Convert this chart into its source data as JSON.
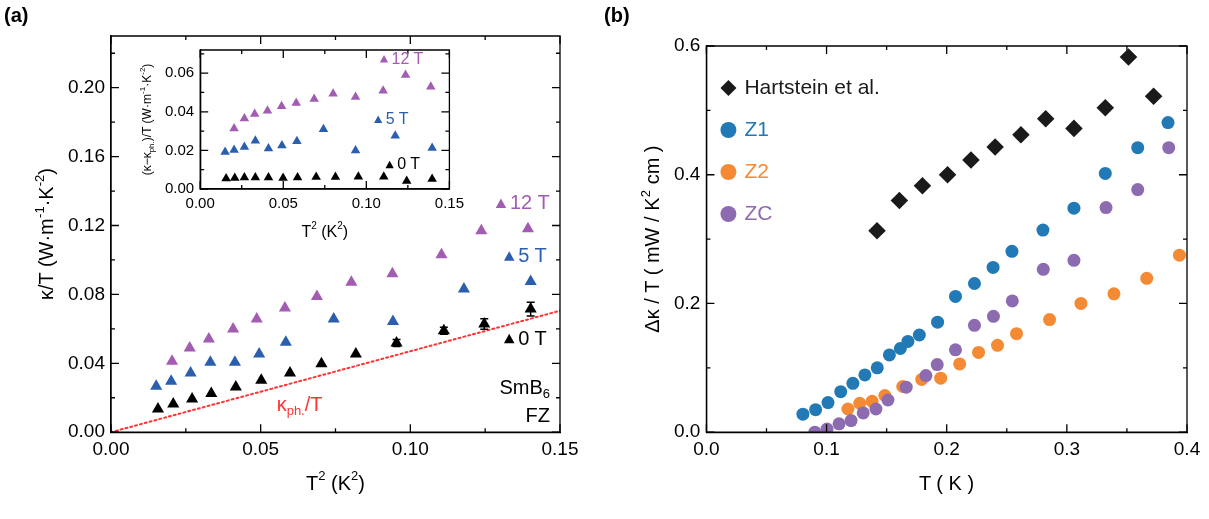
{
  "chart_data": [
    {
      "type": "scatter",
      "title": "(a)",
      "xlabel": "T$^{2}$ (K$^{2}$)",
      "ylabel": "κ/T (W·m$^{-1}$·K$^{-2}$)",
      "marker": "triangle",
      "grid": false,
      "legend": "right",
      "xlim": [
        0,
        0.15
      ],
      "ylim": [
        0,
        0.23
      ],
      "xticks": [
        {
          "value": 0,
          "label": "0.00"
        },
        {
          "value": 0.025,
          "label": null
        },
        {
          "value": 0.05,
          "label": "0.05"
        },
        {
          "value": 0.075,
          "label": null
        },
        {
          "value": 0.1,
          "label": "0.10"
        },
        {
          "value": 0.125,
          "label": null
        },
        {
          "value": 0.15,
          "label": "0.15"
        }
      ],
      "yticks": [
        {
          "value": 0,
          "label": "0.00"
        },
        {
          "value": 0.02,
          "label": null
        },
        {
          "value": 0.04,
          "label": "0.04"
        },
        {
          "value": 0.06,
          "label": null
        },
        {
          "value": 0.08,
          "label": "0.08"
        },
        {
          "value": 0.1,
          "label": null
        },
        {
          "value": 0.12,
          "label": "0.12"
        },
        {
          "value": 0.14,
          "label": null
        },
        {
          "value": 0.16,
          "label": "0.16"
        },
        {
          "value": 0.18,
          "label": null
        },
        {
          "value": 0.2,
          "label": "0.20"
        },
        {
          "value": 0.22,
          "label": null
        }
      ],
      "annotations": [
        "SmB$_{6}$",
        "FZ"
      ],
      "series": [
        {
          "name": "12 T",
          "color": "#a25db3",
          "x": [
            0.0204,
            0.0263,
            0.0327,
            0.0408,
            0.0487,
            0.0581,
            0.0688,
            0.0803,
            0.094,
            0.1104,
            0.1237,
            0.1393
          ],
          "values": [
            0.0412,
            0.0489,
            0.0541,
            0.0599,
            0.0657,
            0.0721,
            0.0788,
            0.0871,
            0.092,
            0.103,
            0.1169,
            0.1181
          ]
        },
        {
          "name": "5 T",
          "color": "#2b5fae",
          "x": [
            0.0151,
            0.0201,
            0.0266,
            0.0332,
            0.0414,
            0.0495,
            0.0584,
            0.0744,
            0.0942,
            0.1179,
            0.1402
          ],
          "values": [
            0.0267,
            0.0296,
            0.0344,
            0.0406,
            0.0406,
            0.0454,
            0.0522,
            0.0657,
            0.0643,
            0.0831,
            0.0875
          ]
        },
        {
          "name": "0 T",
          "color": "#000000",
          "x": [
            0.0157,
            0.0208,
            0.0271,
            0.0335,
            0.0417,
            0.0502,
            0.0598,
            0.0703,
            0.0818,
            0.0954,
            0.1112,
            0.1247,
            0.1402
          ],
          "values": [
            0.0135,
            0.0164,
            0.0193,
            0.0224,
            0.0263,
            0.0301,
            0.0344,
            0.0398,
            0.0454,
            0.0518,
            0.0589,
            0.0628,
            0.0715
          ],
          "errors": [
            null,
            null,
            null,
            null,
            null,
            null,
            null,
            null,
            null,
            0.002,
            0.002,
            0.003,
            0.004
          ]
        },
        {
          "name": "κ$_{ph.}$/T",
          "type": "line",
          "color": "#ff3333",
          "marker": "none",
          "line_style": "dotted",
          "x": [
            0,
            0.15
          ],
          "values": [
            0,
            0.0705
          ]
        }
      ]
    },
    {
      "type": "scatter",
      "xlabel": "T$^{2}$ (K$^{2}$)",
      "ylabel": "(κ−κ$_{ph.}$)/T (W·m$^{-1}$·K$^{-2}$)",
      "marker": "triangle",
      "grid": false,
      "legend": "top right",
      "xlim": [
        0,
        0.15
      ],
      "ylim": [
        0,
        0.072
      ],
      "xticks": [
        {
          "value": 0,
          "label": "0.00"
        },
        {
          "value": 0.025,
          "label": null
        },
        {
          "value": 0.05,
          "label": "0.05"
        },
        {
          "value": 0.075,
          "label": null
        },
        {
          "value": 0.1,
          "label": "0.10"
        },
        {
          "value": 0.125,
          "label": null
        },
        {
          "value": 0.15,
          "label": "0.15"
        }
      ],
      "yticks": [
        {
          "value": 0,
          "label": "0.00"
        },
        {
          "value": 0.01,
          "label": null
        },
        {
          "value": 0.02,
          "label": "0.02"
        },
        {
          "value": 0.03,
          "label": null
        },
        {
          "value": 0.04,
          "label": "0.04"
        },
        {
          "value": 0.05,
          "label": null
        },
        {
          "value": 0.06,
          "label": "0.06"
        },
        {
          "value": 0.07,
          "label": null
        }
      ],
      "series": [
        {
          "name": "12 T",
          "color": "#a25db3",
          "x": [
            0.0204,
            0.0266,
            0.0328,
            0.0405,
            0.049,
            0.0578,
            0.0686,
            0.08,
            0.0935,
            0.1101,
            0.1236,
            0.1388
          ],
          "values": [
            0.0314,
            0.0365,
            0.0388,
            0.0405,
            0.0429,
            0.0445,
            0.0466,
            0.0494,
            0.0477,
            0.0509,
            0.059,
            0.0529
          ]
        },
        {
          "name": "5 T",
          "color": "#2b5fae",
          "x": [
            0.015,
            0.0204,
            0.0266,
            0.0332,
            0.0411,
            0.0492,
            0.0582,
            0.0742,
            0.0935,
            0.1174,
            0.1396
          ],
          "values": [
            0.0192,
            0.0202,
            0.0217,
            0.025,
            0.021,
            0.0225,
            0.0247,
            0.0309,
            0.02,
            0.0276,
            0.0213
          ]
        },
        {
          "name": "0 T",
          "color": "#000000",
          "x": [
            0.0156,
            0.0208,
            0.0266,
            0.0332,
            0.0411,
            0.0499,
            0.0586,
            0.0698,
            0.0814,
            0.0952,
            0.1105,
            0.1243,
            0.1396
          ],
          "values": [
            0.0054,
            0.0057,
            0.0059,
            0.0059,
            0.0059,
            0.0057,
            0.0059,
            0.0062,
            0.0062,
            0.0064,
            0.0064,
            0.0042,
            0.0052
          ]
        }
      ]
    },
    {
      "type": "scatter",
      "title": "(b)",
      "xlabel": "T ( K )",
      "ylabel": "Δκ / T ( mW / K$^{2}$ cm )",
      "marker": "circle",
      "grid": false,
      "legend": "top left",
      "xlim": [
        0,
        0.4
      ],
      "ylim": [
        0,
        0.6
      ],
      "xticks": [
        {
          "value": 0,
          "label": "0.0"
        },
        {
          "value": 0.05,
          "label": null
        },
        {
          "value": 0.1,
          "label": "0.1"
        },
        {
          "value": 0.15,
          "label": null
        },
        {
          "value": 0.2,
          "label": "0.2"
        },
        {
          "value": 0.25,
          "label": null
        },
        {
          "value": 0.3,
          "label": "0.3"
        },
        {
          "value": 0.35,
          "label": null
        },
        {
          "value": 0.4,
          "label": "0.4"
        }
      ],
      "yticks": [
        {
          "value": 0,
          "label": "0.0"
        },
        {
          "value": 0.1,
          "label": null
        },
        {
          "value": 0.2,
          "label": "0.2"
        },
        {
          "value": 0.3,
          "label": null
        },
        {
          "value": 0.4,
          "label": "0.4"
        },
        {
          "value": 0.5,
          "label": null
        },
        {
          "value": 0.6,
          "label": "0.6"
        }
      ],
      "series": [
        {
          "name": "Hartstein et al.",
          "color": "#1a1a1a",
          "marker": "diamond",
          "x": [
            0.142,
            0.1606,
            0.1798,
            0.2007,
            0.2202,
            0.2403,
            0.2618,
            0.2824,
            0.3059,
            0.332,
            0.3513,
            0.3722
          ],
          "values": [
            0.313,
            0.36,
            0.383,
            0.4,
            0.423,
            0.443,
            0.462,
            0.487,
            0.472,
            0.504,
            0.583,
            0.522
          ]
        },
        {
          "name": "Z1",
          "color": "#2179b5",
          "x": [
            0.0803,
            0.0909,
            0.1012,
            0.1118,
            0.1219,
            0.1319,
            0.1422,
            0.1523,
            0.1614,
            0.1677,
            0.1772,
            0.1924,
            0.2073,
            0.2231,
            0.2386,
            0.2543,
            0.2801,
            0.3059,
            0.332,
            0.359,
            0.3842
          ],
          "values": [
            0.028,
            0.035,
            0.046,
            0.063,
            0.076,
            0.089,
            0.1,
            0.12,
            0.13,
            0.141,
            0.151,
            0.171,
            0.211,
            0.231,
            0.256,
            0.281,
            0.314,
            0.348,
            0.402,
            0.442,
            0.481
          ]
        },
        {
          "name": "Z2",
          "color": "#f58a34",
          "x": [
            0.1178,
            0.1276,
            0.1379,
            0.1485,
            0.1634,
            0.1792,
            0.195,
            0.2108,
            0.2265,
            0.2423,
            0.2581,
            0.2856,
            0.3117,
            0.3392,
            0.3665,
            0.3937
          ],
          "values": [
            0.036,
            0.045,
            0.048,
            0.057,
            0.071,
            0.082,
            0.084,
            0.106,
            0.124,
            0.135,
            0.153,
            0.175,
            0.2,
            0.215,
            0.239,
            0.275
          ]
        },
        {
          "name": "ZC",
          "color": "#8c6bb1",
          "x": [
            0.0903,
            0.1004,
            0.1104,
            0.1204,
            0.1305,
            0.1411,
            0.1511,
            0.1663,
            0.1827,
            0.1921,
            0.2073,
            0.2231,
            0.2389,
            0.2546,
            0.2804,
            0.3059,
            0.3326,
            0.359,
            0.3848
          ],
          "values": [
            0,
            0.005,
            0.013,
            0.018,
            0.03,
            0.036,
            0.05,
            0.07,
            0.088,
            0.105,
            0.128,
            0.166,
            0.18,
            0.204,
            0.253,
            0.267,
            0.349,
            0.377,
            0.442
          ]
        }
      ]
    }
  ]
}
